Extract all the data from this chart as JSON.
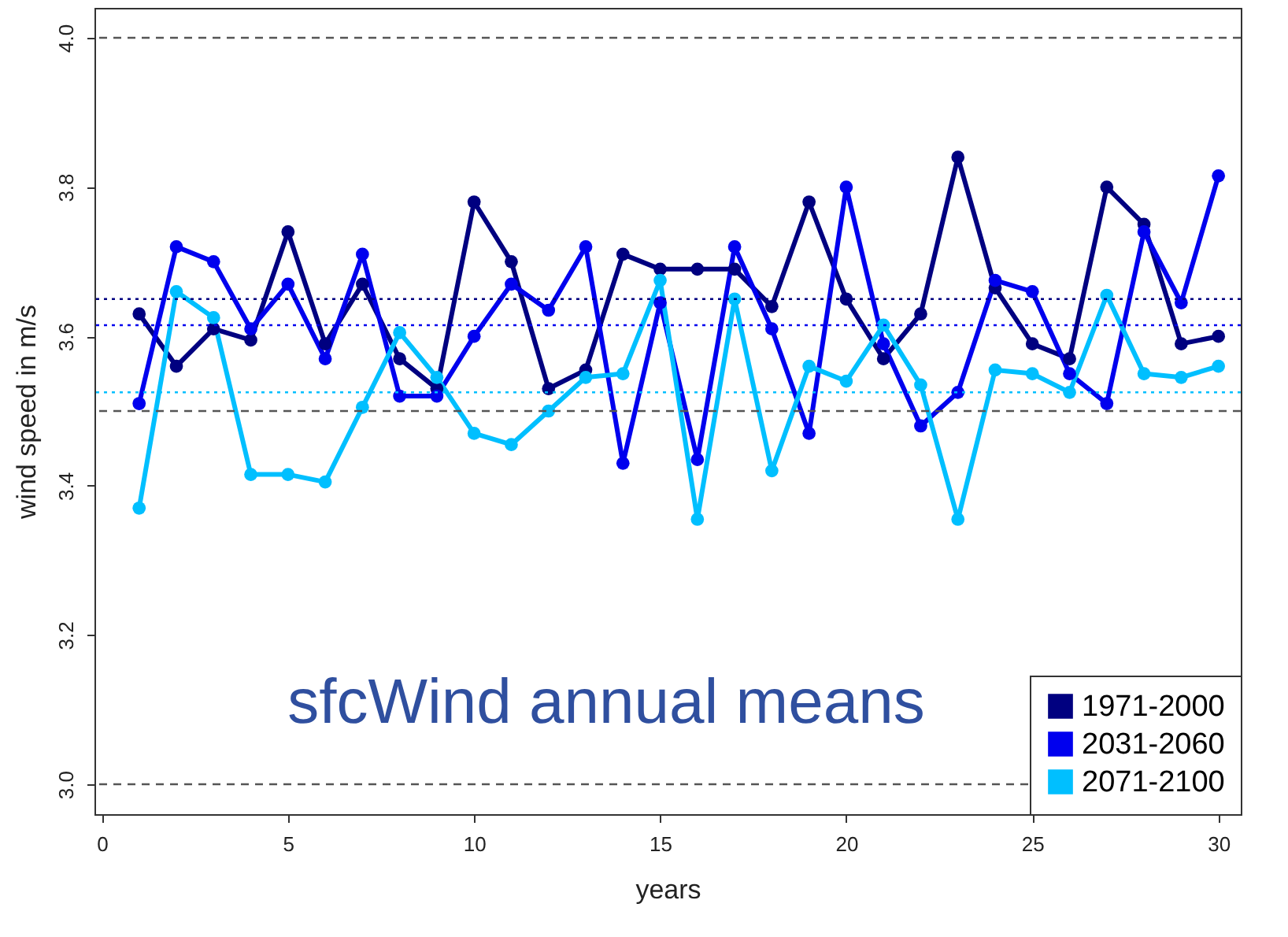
{
  "chart_data": {
    "type": "line",
    "xlabel": "years",
    "ylabel": "wind speed in m/s",
    "annotations": [
      "sfcWind annual means"
    ],
    "x": [
      1,
      2,
      3,
      4,
      5,
      6,
      7,
      8,
      9,
      10,
      11,
      12,
      13,
      14,
      15,
      16,
      17,
      18,
      19,
      20,
      21,
      22,
      23,
      24,
      25,
      26,
      27,
      28,
      29,
      30
    ],
    "series": [
      {
        "name": "1971-2000",
        "color": "#000080",
        "values": [
          3.63,
          3.56,
          3.61,
          3.595,
          3.74,
          3.59,
          3.67,
          3.57,
          3.53,
          3.78,
          3.7,
          3.53,
          3.555,
          3.71,
          3.69,
          3.69,
          3.69,
          3.64,
          3.78,
          3.65,
          3.57,
          3.63,
          3.84,
          3.665,
          3.59,
          3.57,
          3.8,
          3.75,
          3.59,
          3.6
        ]
      },
      {
        "name": "2031-2060",
        "color": "#0000ee",
        "values": [
          3.51,
          3.72,
          3.7,
          3.61,
          3.67,
          3.57,
          3.71,
          3.52,
          3.52,
          3.6,
          3.67,
          3.635,
          3.72,
          3.43,
          3.645,
          3.435,
          3.72,
          3.61,
          3.47,
          3.8,
          3.59,
          3.48,
          3.525,
          3.675,
          3.66,
          3.55,
          3.51,
          3.74,
          3.645,
          3.815
        ]
      },
      {
        "name": "2071-2100",
        "color": "#00bfff",
        "values": [
          3.37,
          3.66,
          3.625,
          3.415,
          3.415,
          3.405,
          3.505,
          3.605,
          3.545,
          3.47,
          3.455,
          3.5,
          3.545,
          3.55,
          3.675,
          3.355,
          3.65,
          3.42,
          3.56,
          3.54,
          3.615,
          3.535,
          3.355,
          3.555,
          3.55,
          3.525,
          3.655,
          3.55,
          3.545,
          3.56
        ]
      }
    ],
    "ref_lines": [
      {
        "axis": "y",
        "value": 4.0,
        "color": "#555555",
        "line_style": "dashed"
      },
      {
        "axis": "y",
        "value": 3.5,
        "color": "#555555",
        "line_style": "dashed"
      },
      {
        "axis": "y",
        "value": 3.0,
        "color": "#555555",
        "line_style": "dashed"
      },
      {
        "axis": "y",
        "value": 3.65,
        "color": "#000080",
        "line_style": "dotted"
      },
      {
        "axis": "y",
        "value": 3.615,
        "color": "#0000ee",
        "line_style": "dotted"
      },
      {
        "axis": "y",
        "value": 3.525,
        "color": "#00bfff",
        "line_style": "dotted"
      }
    ],
    "xlim": [
      -0.2,
      30.6
    ],
    "xticks": [
      0,
      5,
      10,
      15,
      20,
      25,
      30
    ],
    "ylim": [
      2.96,
      4.04
    ],
    "yticks": [
      {
        "value": 3,
        "label": "3.0"
      },
      3.2,
      3.4,
      3.6,
      3.8,
      {
        "value": 4,
        "label": "4.0"
      }
    ],
    "grid": false,
    "legend": "bottom right",
    "marker": "circle",
    "line_style": "solid"
  }
}
